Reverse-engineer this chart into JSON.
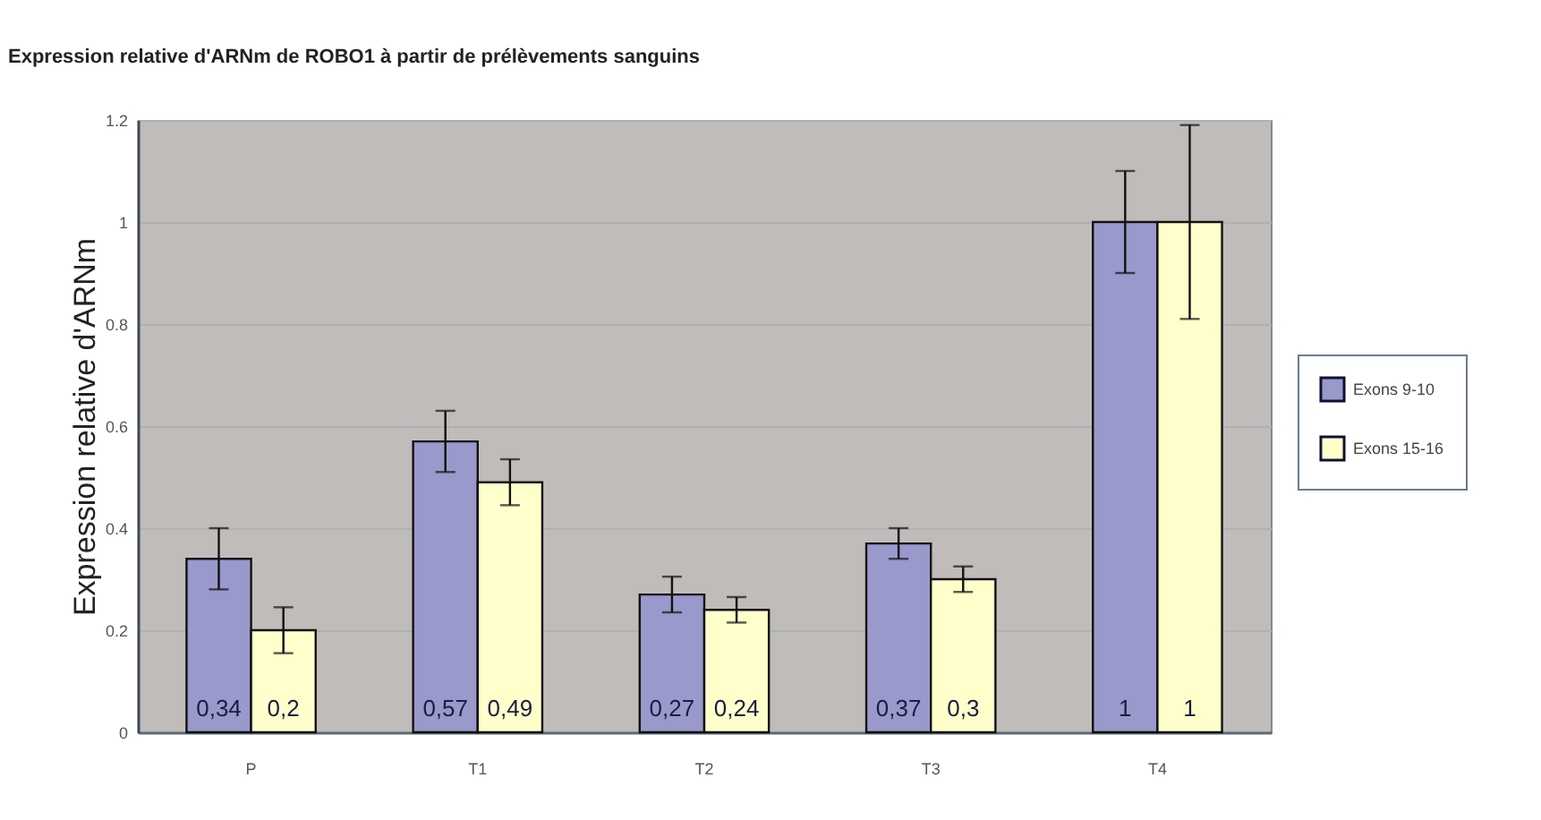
{
  "chart_data": {
    "type": "bar",
    "title": "Expression relative d'ARNm de ROBO1 à partir de prélèvements sanguins",
    "ylabel": "Expression relative d'ARNm",
    "categories": [
      "P",
      "T1",
      "T2",
      "T3",
      "T4"
    ],
    "series": [
      {
        "name": "Exons 9-10",
        "color": "#9999cc",
        "values": [
          0.34,
          0.57,
          0.27,
          0.37,
          1
        ],
        "errors": [
          0.06,
          0.06,
          0.035,
          0.03,
          0.1
        ],
        "value_labels": [
          "0,34",
          "0,57",
          "0,27",
          "0,37",
          "1"
        ]
      },
      {
        "name": "Exons 15-16",
        "color": "#ffffcc",
        "values": [
          0.2,
          0.49,
          0.24,
          0.3,
          1
        ],
        "errors": [
          0.045,
          0.045,
          0.025,
          0.025,
          0.19
        ],
        "value_labels": [
          "0,2",
          "0,49",
          "0,24",
          "0,3",
          "1"
        ]
      }
    ],
    "ylim": [
      0,
      1.2
    ],
    "yticks": [
      0,
      0.2,
      0.4,
      0.6,
      0.8,
      1,
      1.2
    ],
    "grid": "y",
    "legend": "right"
  }
}
